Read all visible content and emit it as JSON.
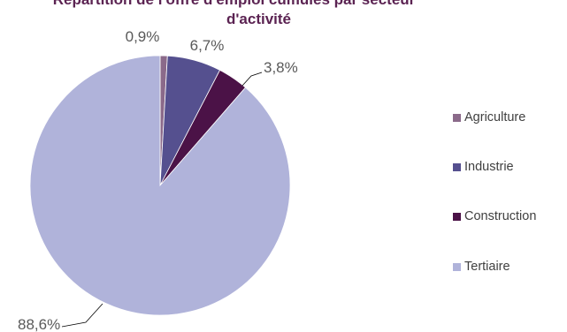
{
  "chart_data": {
    "type": "pie",
    "title": "Répartition de l'offre d'emploi cumulés par secteur d'activité",
    "title_lines": [
      "Répartition de l'offre d'emploi cumulés par secteur",
      "d'activité"
    ],
    "categories": [
      "Agriculture",
      "Industrie",
      "Construction",
      "Tertiaire"
    ],
    "values": [
      0.9,
      6.7,
      3.8,
      88.6
    ],
    "labels": [
      "0,9%",
      "6,7%",
      "3,8%",
      "88,6%"
    ],
    "colors": [
      "#8b6a8a",
      "#55508f",
      "#4b1247",
      "#b0b3da"
    ],
    "legend_position": "right",
    "start_angle_deg": 0,
    "direction": "clockwise"
  }
}
